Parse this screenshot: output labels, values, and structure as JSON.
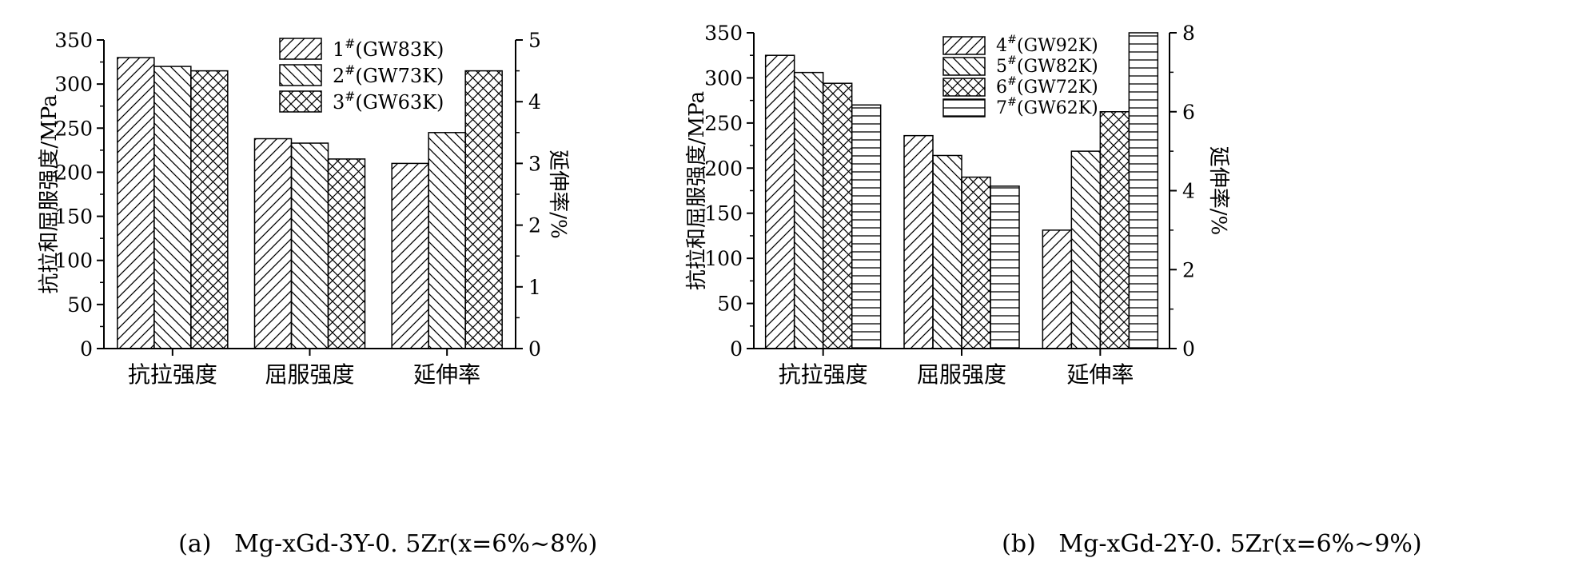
{
  "chart_data": [
    {
      "type": "bar",
      "panel_label": "(a)",
      "caption": "Mg-xGd-3Y-0. 5Zr(x=6%~8%)",
      "categories": [
        "抗拉强度",
        "屈服强度",
        "延伸率"
      ],
      "ylabel": "抗拉和屈服强度/MPa",
      "y2label": "延伸率/%",
      "ylim": [
        0,
        350
      ],
      "yticks": [
        0,
        50,
        100,
        150,
        200,
        250,
        300,
        350
      ],
      "y2lim": [
        0,
        5
      ],
      "y2ticks": [
        0,
        1,
        2,
        3,
        4,
        5
      ],
      "legend_position": "top-right",
      "grid": false,
      "series": [
        {
          "name": "1#(GW83K)",
          "pattern": "diag-right",
          "values": [
            330,
            238,
            3.0
          ]
        },
        {
          "name": "2#(GW73K)",
          "pattern": "diag-left",
          "values": [
            320,
            233,
            3.5
          ]
        },
        {
          "name": "3#(GW63K)",
          "pattern": "crosshatch",
          "values": [
            315,
            215,
            4.5
          ]
        }
      ],
      "elongation_axis": "right"
    },
    {
      "type": "bar",
      "panel_label": "(b)",
      "caption": "Mg-xGd-2Y-0. 5Zr(x=6%~9%)",
      "categories": [
        "抗拉强度",
        "屈服强度",
        "延伸率"
      ],
      "ylabel": "抗拉和屈服强度/MPa",
      "y2label": "延伸率/%",
      "ylim": [
        0,
        350
      ],
      "yticks": [
        0,
        50,
        100,
        150,
        200,
        250,
        300,
        350
      ],
      "y2lim": [
        0,
        8
      ],
      "y2ticks": [
        0,
        2,
        4,
        6,
        8
      ],
      "legend_position": "top-right",
      "grid": false,
      "series": [
        {
          "name": "4#(GW92K)",
          "pattern": "diag-right",
          "values": [
            325,
            236,
            3.0
          ]
        },
        {
          "name": "5#(GW82K)",
          "pattern": "diag-left",
          "values": [
            306,
            214,
            5.0
          ]
        },
        {
          "name": "6#(GW72K)",
          "pattern": "crosshatch",
          "values": [
            294,
            190,
            6.0
          ]
        },
        {
          "name": "7#(GW62K)",
          "pattern": "horizontal",
          "values": [
            270,
            180,
            8.0
          ]
        }
      ],
      "elongation_axis": "right"
    }
  ]
}
